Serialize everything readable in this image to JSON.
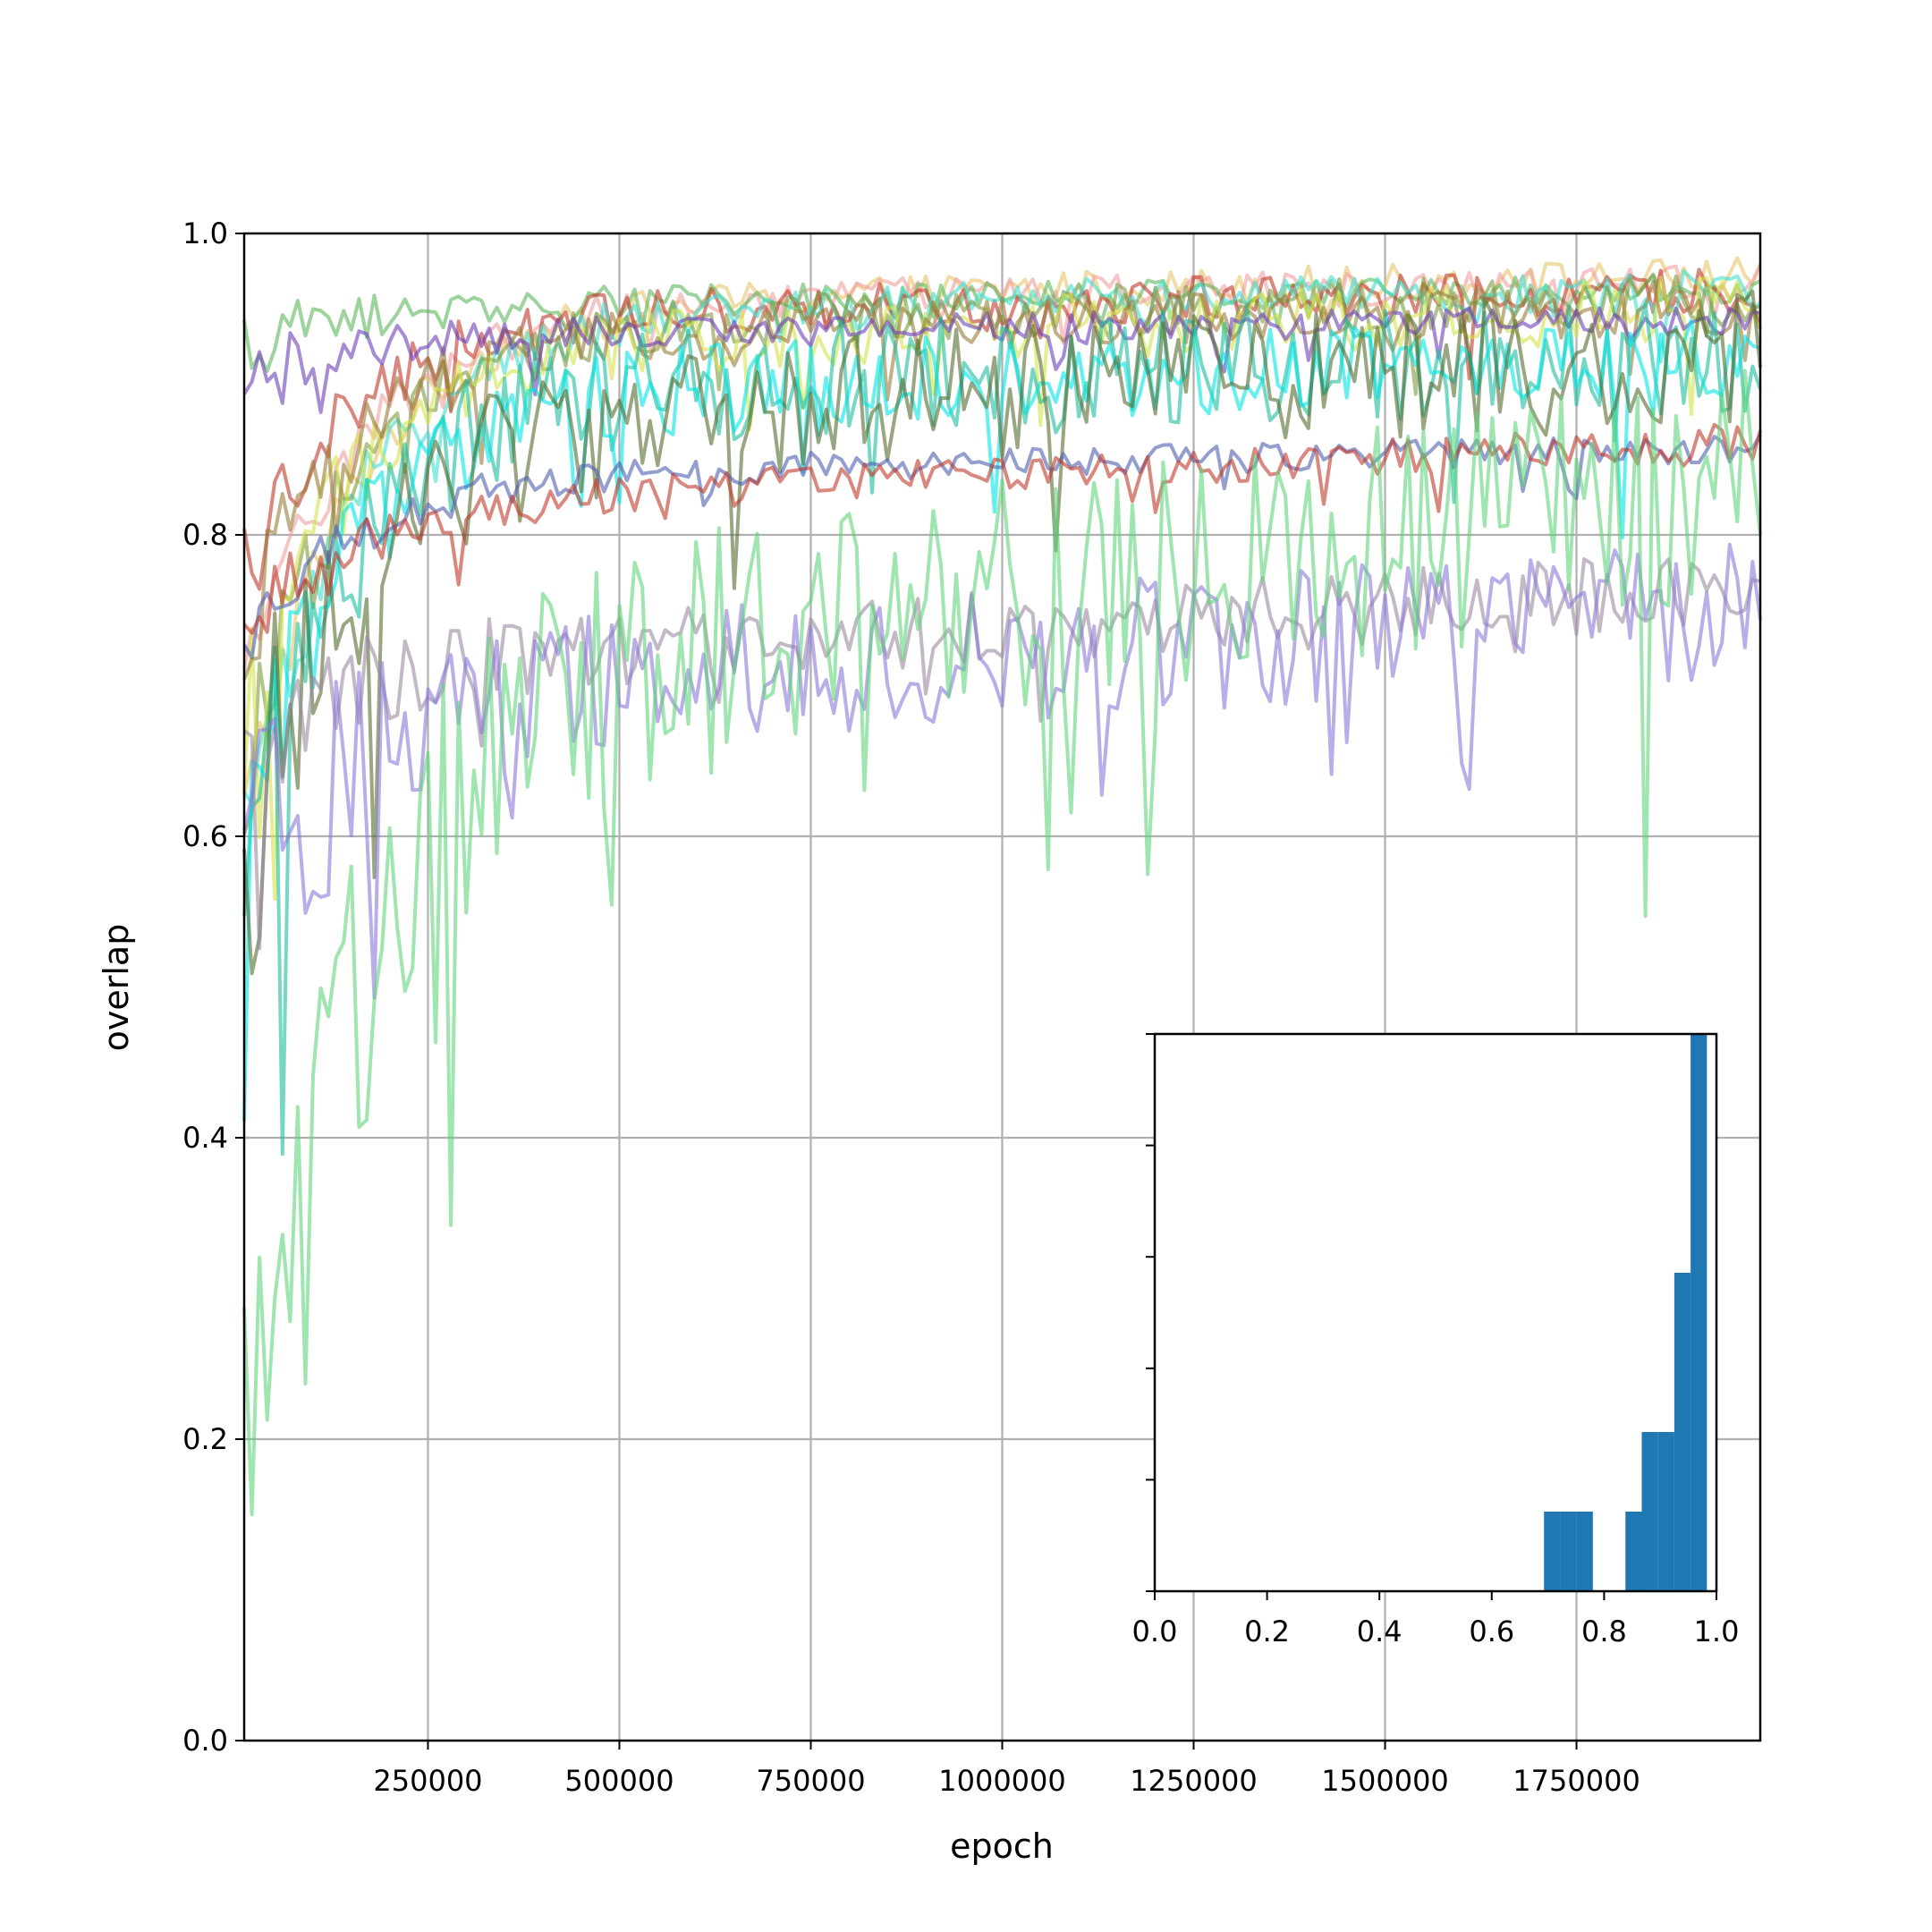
{
  "chart_data": [
    {
      "type": "line",
      "title": "",
      "xlabel": "epoch",
      "ylabel": "overlap",
      "xlim": [
        10000,
        1990000
      ],
      "ylim": [
        0.0,
        1.0
      ],
      "x_ticks": [
        250000,
        500000,
        750000,
        1000000,
        1250000,
        1500000,
        1750000
      ],
      "x_tick_labels": [
        "250000",
        "500000",
        "750000",
        "1000000",
        "1250000",
        "1500000",
        "1750000"
      ],
      "y_ticks": [
        0.0,
        0.2,
        0.4,
        0.6,
        0.8,
        1.0
      ],
      "y_tick_labels": [
        "0.0",
        "0.2",
        "0.4",
        "0.6",
        "0.8",
        "1.0"
      ],
      "grid": true,
      "legend": "none",
      "x_step": 10000,
      "series": [
        {
          "color": "#e8c56a",
          "start": 0.62,
          "mid": 0.955,
          "end": 0.975,
          "noise": 0.012
        },
        {
          "color": "#f0a0a0",
          "start": 0.7,
          "mid": 0.955,
          "end": 0.97,
          "noise": 0.012
        },
        {
          "color": "#5cb85c",
          "start": 0.93,
          "mid": 0.955,
          "end": 0.965,
          "noise": 0.01
        },
        {
          "color": "#c0392b",
          "start": 0.78,
          "mid": 0.95,
          "end": 0.965,
          "noise": 0.015
        },
        {
          "color": "#40e0d0",
          "start": 0.6,
          "mid": 0.95,
          "end": 0.965,
          "noise": 0.015
        },
        {
          "color": "#7d9a3f",
          "start": 0.65,
          "mid": 0.945,
          "end": 0.96,
          "noise": 0.018
        },
        {
          "color": "#d4e34a",
          "start": 0.68,
          "mid": 0.93,
          "end": 0.955,
          "noise": 0.022
        },
        {
          "color": "#9a7b3a",
          "start": 0.74,
          "mid": 0.935,
          "end": 0.955,
          "noise": 0.018
        },
        {
          "color": "#6a3fb8",
          "start": 0.91,
          "mid": 0.935,
          "end": 0.945,
          "noise": 0.01
        },
        {
          "color": "#1abc9c",
          "start": 0.6,
          "mid": 0.9,
          "end": 0.93,
          "noise": 0.04
        },
        {
          "color": "#00e5e5",
          "start": 0.62,
          "mid": 0.9,
          "end": 0.92,
          "noise": 0.03
        },
        {
          "color": "#556b2f",
          "start": 0.62,
          "mid": 0.88,
          "end": 0.93,
          "noise": 0.045
        },
        {
          "color": "#4c5fb0",
          "start": 0.73,
          "mid": 0.84,
          "end": 0.86,
          "noise": 0.01
        },
        {
          "color": "#c0392b",
          "start": 0.74,
          "mid": 0.82,
          "end": 0.865,
          "noise": 0.012
        },
        {
          "color": "#9b8aa0",
          "start": 0.66,
          "mid": 0.72,
          "end": 0.77,
          "noise": 0.025
        },
        {
          "color": "#8a78d8",
          "start": 0.57,
          "mid": 0.7,
          "end": 0.76,
          "noise": 0.045
        },
        {
          "color": "#5fd47a",
          "start": 0.2,
          "mid": 0.7,
          "end": 0.85,
          "noise": 0.08
        }
      ]
    },
    {
      "type": "bar",
      "title": "",
      "xlabel": "",
      "ylabel": "",
      "xlim": [
        0.0,
        1.0
      ],
      "x_ticks": [
        0.0,
        0.2,
        0.4,
        0.6,
        0.8,
        1.0
      ],
      "x_tick_labels": [
        "0.0",
        "0.2",
        "0.4",
        "0.6",
        "0.8",
        "1.0"
      ],
      "y_tick_count": 5,
      "color": "#1f77b4",
      "bins": [
        {
          "x0": 0.693,
          "x1": 0.722,
          "count": 1
        },
        {
          "x0": 0.722,
          "x1": 0.751,
          "count": 1
        },
        {
          "x0": 0.751,
          "x1": 0.78,
          "count": 1
        },
        {
          "x0": 0.838,
          "x1": 0.867,
          "count": 1
        },
        {
          "x0": 0.867,
          "x1": 0.896,
          "count": 2
        },
        {
          "x0": 0.896,
          "x1": 0.925,
          "count": 2
        },
        {
          "x0": 0.925,
          "x1": 0.954,
          "count": 4
        },
        {
          "x0": 0.954,
          "x1": 0.983,
          "count": 7
        }
      ]
    }
  ]
}
